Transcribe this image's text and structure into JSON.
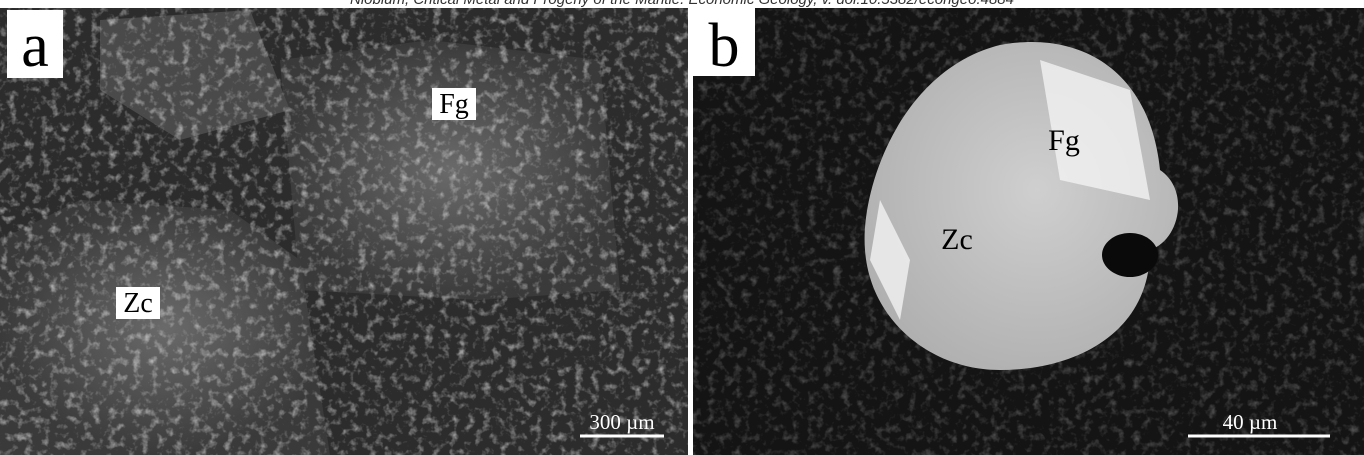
{
  "header": {
    "citation": "Niobium, Critical Metal and Progeny of the Mantle. Economic Geology, v. doi:10.5382/econgeo.4884"
  },
  "panels": [
    {
      "label": "a",
      "annotations": [
        "Fg",
        "Zc"
      ],
      "scale_bar": "300 µm"
    },
    {
      "label": "b",
      "annotations": [
        "Fg",
        "Zc"
      ],
      "scale_bar": "40 µm"
    }
  ]
}
